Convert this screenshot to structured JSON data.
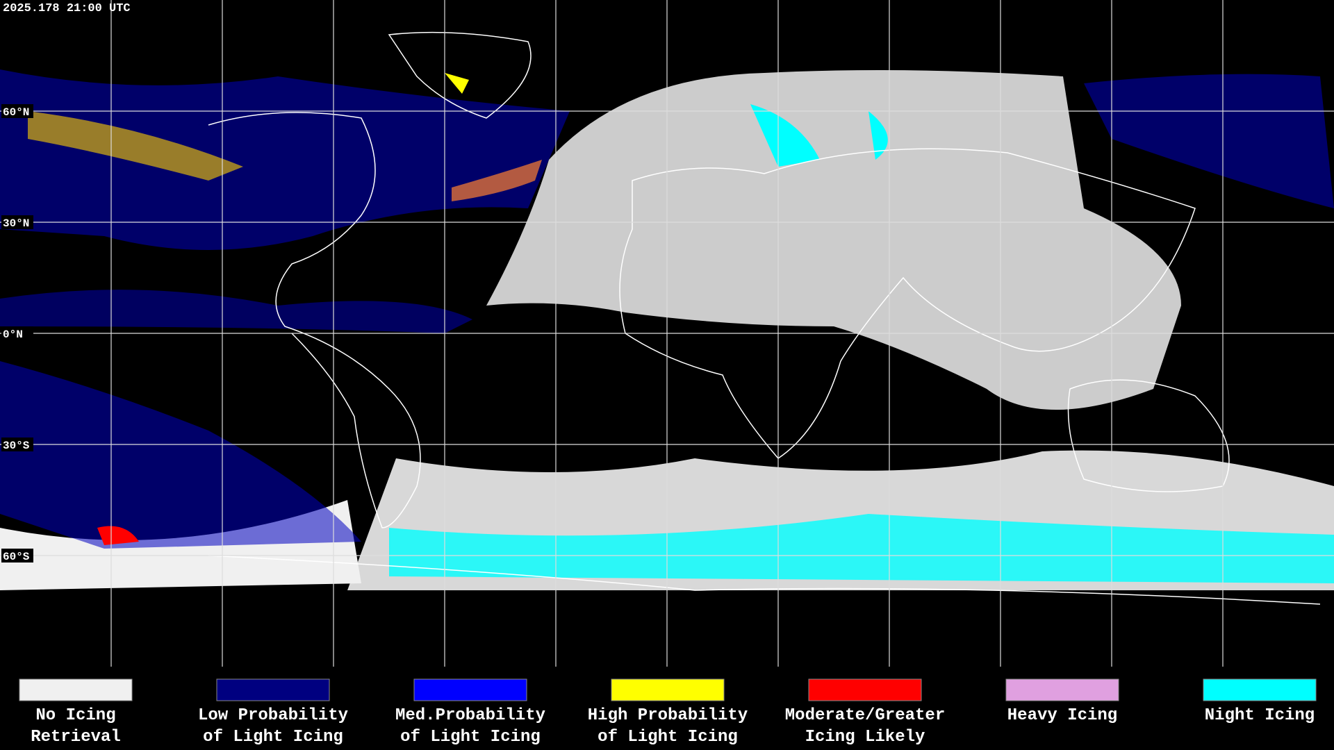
{
  "timestamp": "2025.178 21:00 UTC",
  "latitude_labels": [
    "60°N",
    "30°N",
    "0°N",
    "30°S",
    "60°S"
  ],
  "legend": [
    {
      "lines": [
        "No Icing",
        "Retrieval"
      ],
      "color": "#f0f0f0"
    },
    {
      "lines": [
        "Low Probability",
        "of Light Icing"
      ],
      "color": "#000080"
    },
    {
      "lines": [
        "Med.Probability",
        "of Light Icing"
      ],
      "color": "#0000ff"
    },
    {
      "lines": [
        "High Probability",
        "of Light Icing"
      ],
      "color": "#ffff00"
    },
    {
      "lines": [
        "Moderate/Greater",
        "Icing Likely"
      ],
      "color": "#ff0000"
    },
    {
      "lines": [
        "Heavy Icing"
      ],
      "color": "#e0a0e0"
    },
    {
      "lines": [
        "Night Icing"
      ],
      "color": "#00ffff"
    }
  ]
}
